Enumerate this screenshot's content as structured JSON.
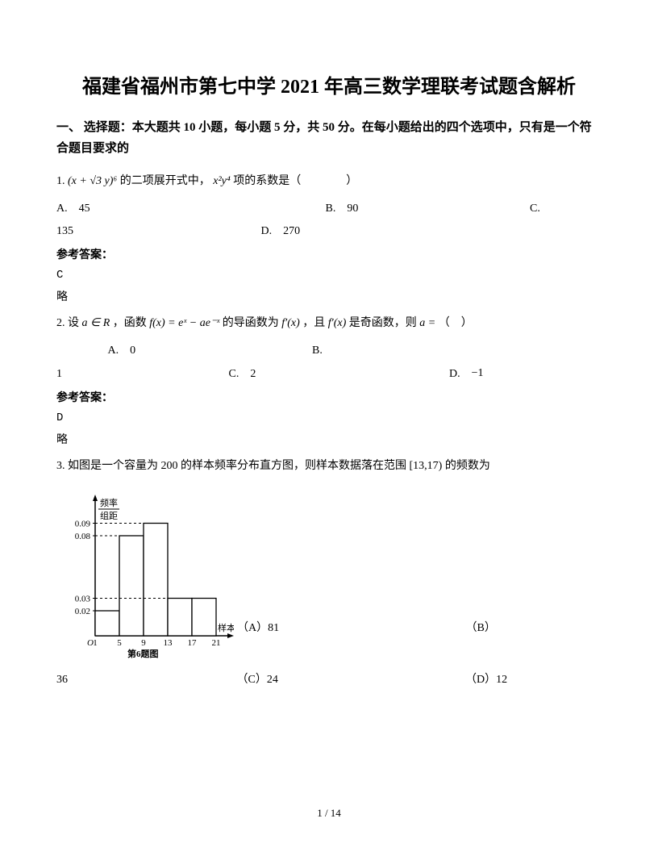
{
  "title": "福建省福州市第七中学 2021 年高三数学理联考试题含解析",
  "section1": {
    "header": "一、 选择题：本大题共 10 小题，每小题 5 分，共 50 分。在每小题给出的四个选项中，只有是一个符合题目要求的"
  },
  "q1": {
    "num": "1.",
    "expr_left": "(x + √3 y)⁶",
    "text_mid": " 的二项展开式中，",
    "expr_right": "x²y⁴",
    "text_end": " 项的系数是（　　　　）",
    "optA": "A.　45",
    "optB": "B.　90",
    "optC": "C.",
    "optC2": "135",
    "optD": "D.　270",
    "answer_label": "参考答案：",
    "answer": "C",
    "brief": "略"
  },
  "q2": {
    "num": "2.",
    "t1": " 设",
    "expr_a": "a ∈ R",
    "t2": "，函数",
    "expr_f": "f(x) = eˣ − ae⁻ˣ",
    "t3": " 的导函数为",
    "expr_fp": "f′(x)",
    "t4": "，且",
    "expr_fp2": "f′(x)",
    "t5": " 是奇函数，则",
    "expr_aeq": "a =",
    "t6": "（　）",
    "optA": "A.　0",
    "optB": "B.",
    "optB2": "1",
    "optC": "C.　2",
    "optD": "D.　",
    "optD_val": "−1",
    "answer_label": "参考答案：",
    "answer": "D",
    "brief": "略"
  },
  "q3": {
    "num": "3.",
    "text1": " 如图是一个容量为 200 的样本频率分布直方图，则样本数据落在范围",
    "interval": "[13,17)",
    "text2": " 的频数为",
    "chart": {
      "type": "histogram",
      "y_axis_label_top": "频率",
      "y_axis_label_bottom": "组距",
      "x_axis_label": "样本数据",
      "caption": "第6题图",
      "bars": [
        {
          "x_start": 1,
          "x_end": 5,
          "height": 0.02
        },
        {
          "x_start": 5,
          "x_end": 9,
          "height": 0.08
        },
        {
          "x_start": 9,
          "x_end": 13,
          "height": 0.09
        },
        {
          "x_start": 13,
          "x_end": 17,
          "height": 0.03
        },
        {
          "x_start": 17,
          "x_end": 21,
          "height": 0.03
        }
      ],
      "y_ticks": [
        0.02,
        0.03,
        0.08,
        0.09
      ],
      "y_tick_labels": [
        "0.02",
        "0.03",
        "0.08",
        "0.09"
      ],
      "x_ticks": [
        1,
        5,
        9,
        13,
        17,
        21
      ],
      "x_tick_labels": [
        "1",
        "5",
        "9",
        "13",
        "17",
        "21"
      ],
      "origin_label": "O",
      "bar_fill": "#ffffff",
      "bar_stroke": "#000000",
      "axis_color": "#000000",
      "font_size": 11
    },
    "optA": "（A）81",
    "optB": "（B）",
    "optB2": "36",
    "optC": "（C）24",
    "optD": "（D）12"
  },
  "footer": {
    "page": "1 / 14"
  }
}
